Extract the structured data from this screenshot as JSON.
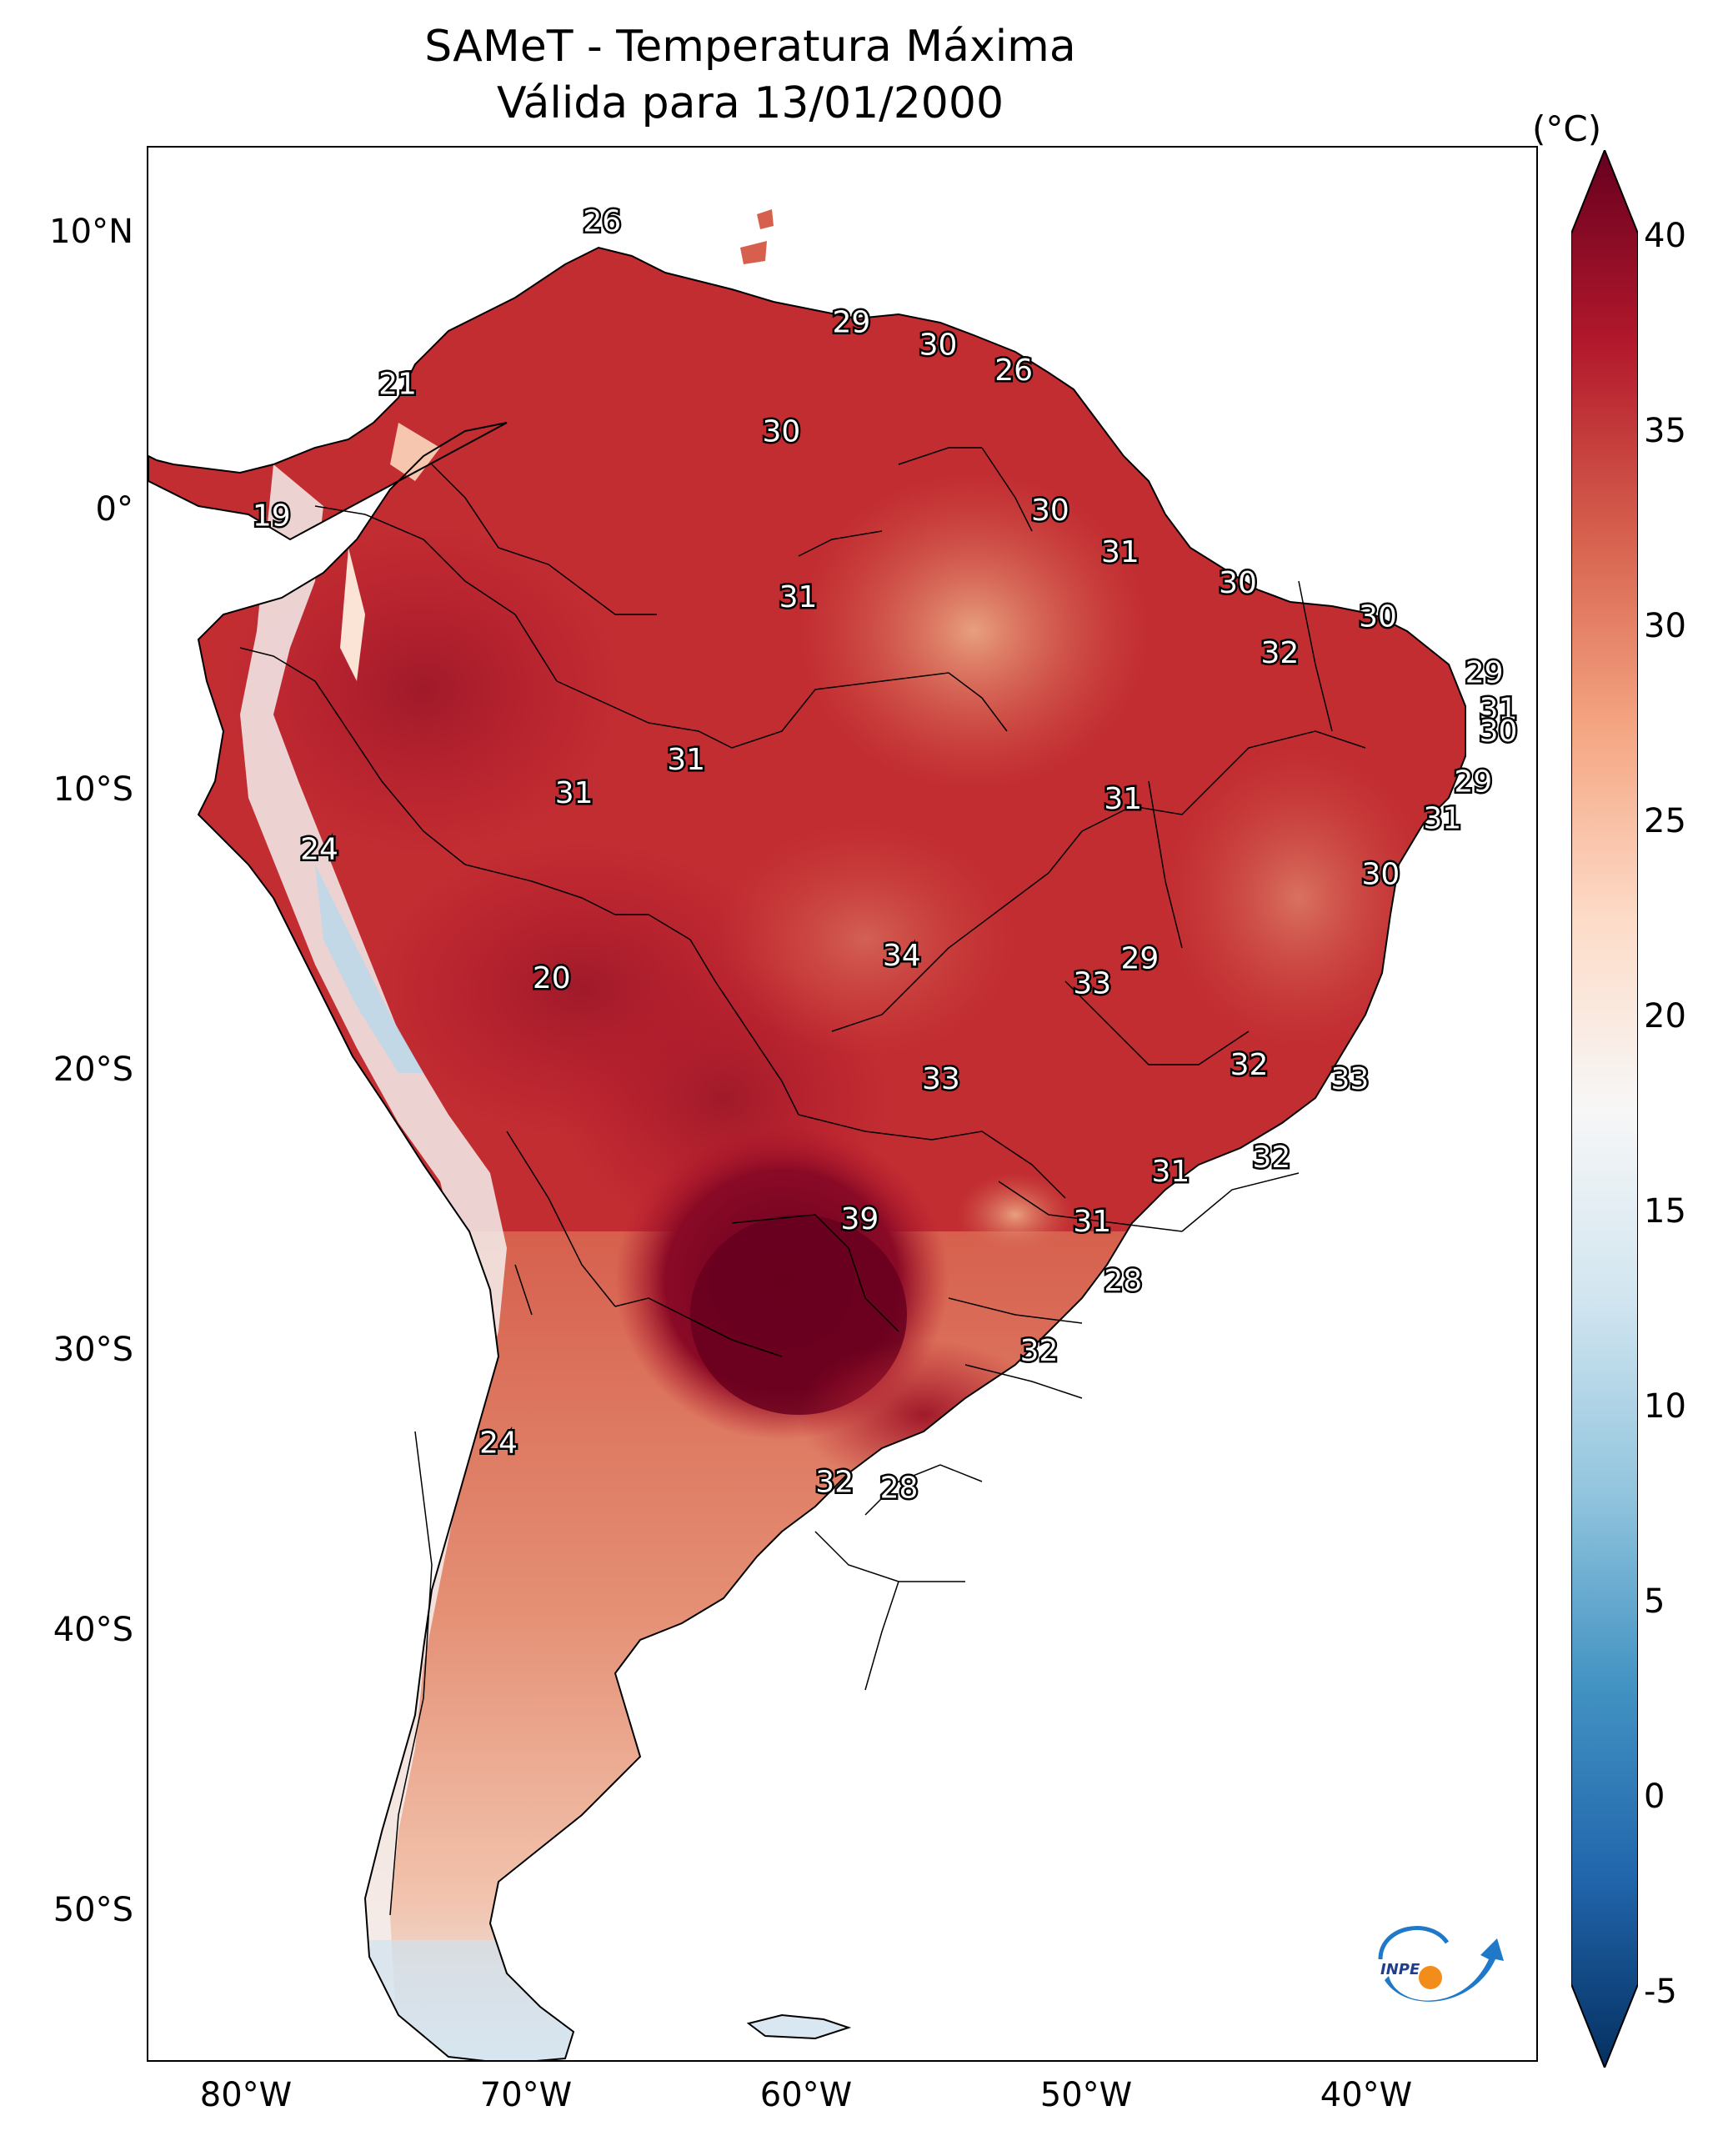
{
  "title": {
    "line1": "SAMeT - Temperatura Máxima",
    "line2": "Válida para 13/01/2000"
  },
  "axes": {
    "lat_ticks": [
      "10°N",
      "0°",
      "10°S",
      "20°S",
      "30°S",
      "40°S",
      "50°S"
    ],
    "lon_ticks": [
      "80°W",
      "70°W",
      "60°W",
      "50°W",
      "40°W"
    ]
  },
  "colorbar": {
    "unit": "(°C)",
    "ticks": [
      "40",
      "35",
      "30",
      "25",
      "20",
      "15",
      "10",
      "5",
      "0",
      "-5"
    ],
    "colors": [
      "#053061",
      "#2166ac",
      "#4393c3",
      "#92c5de",
      "#d1e5f0",
      "#f7f7f7",
      "#fddbc7",
      "#f4a582",
      "#d6604d",
      "#b2182b",
      "#67001f"
    ]
  },
  "labels": [
    {
      "value": "26",
      "lon": -66.8,
      "lat": 10.3
    },
    {
      "value": "29",
      "lon": -57.9,
      "lat": 6.7
    },
    {
      "value": "30",
      "lon": -54.8,
      "lat": 5.9
    },
    {
      "value": "26",
      "lon": -52.1,
      "lat": 5.0
    },
    {
      "value": "21",
      "lon": -74.1,
      "lat": 4.5
    },
    {
      "value": "30",
      "lon": -60.4,
      "lat": 2.8
    },
    {
      "value": "19",
      "lon": -78.6,
      "lat": -0.2
    },
    {
      "value": "30",
      "lon": -50.8,
      "lat": 0.0
    },
    {
      "value": "31",
      "lon": -48.3,
      "lat": -1.5
    },
    {
      "value": "30",
      "lon": -44.1,
      "lat": -2.6
    },
    {
      "value": "31",
      "lon": -59.8,
      "lat": -3.1
    },
    {
      "value": "30",
      "lon": -39.1,
      "lat": -3.8
    },
    {
      "value": "32",
      "lon": -42.6,
      "lat": -5.1
    },
    {
      "value": "29",
      "lon": -35.3,
      "lat": -5.8
    },
    {
      "value": "31",
      "lon": -34.8,
      "lat": -7.1
    },
    {
      "value": "30",
      "lon": -34.8,
      "lat": -7.9
    },
    {
      "value": "31",
      "lon": -63.8,
      "lat": -8.9
    },
    {
      "value": "29",
      "lon": -35.7,
      "lat": -9.7
    },
    {
      "value": "31",
      "lon": -67.8,
      "lat": -10.1
    },
    {
      "value": "31",
      "lon": -48.2,
      "lat": -10.3
    },
    {
      "value": "31",
      "lon": -36.8,
      "lat": -11.0
    },
    {
      "value": "24",
      "lon": -76.9,
      "lat": -12.1
    },
    {
      "value": "30",
      "lon": -39.0,
      "lat": -13.0
    },
    {
      "value": "34",
      "lon": -56.1,
      "lat": -15.9
    },
    {
      "value": "29",
      "lon": -47.6,
      "lat": -16.0
    },
    {
      "value": "33",
      "lon": -49.3,
      "lat": -16.9
    },
    {
      "value": "20",
      "lon": -68.6,
      "lat": -16.7
    },
    {
      "value": "32",
      "lon": -43.7,
      "lat": -19.8
    },
    {
      "value": "33",
      "lon": -40.1,
      "lat": -20.3
    },
    {
      "value": "33",
      "lon": -54.7,
      "lat": -20.3
    },
    {
      "value": "32",
      "lon": -42.9,
      "lat": -23.1
    },
    {
      "value": "31",
      "lon": -46.5,
      "lat": -23.6
    },
    {
      "value": "39",
      "lon": -57.6,
      "lat": -25.3
    },
    {
      "value": "31",
      "lon": -49.3,
      "lat": -25.4
    },
    {
      "value": "28",
      "lon": -48.2,
      "lat": -27.5
    },
    {
      "value": "32",
      "lon": -51.2,
      "lat": -30.0
    },
    {
      "value": "24",
      "lon": -70.5,
      "lat": -33.3
    },
    {
      "value": "32",
      "lon": -58.5,
      "lat": -34.7
    },
    {
      "value": "28",
      "lon": -56.2,
      "lat": -34.9
    }
  ]
}
